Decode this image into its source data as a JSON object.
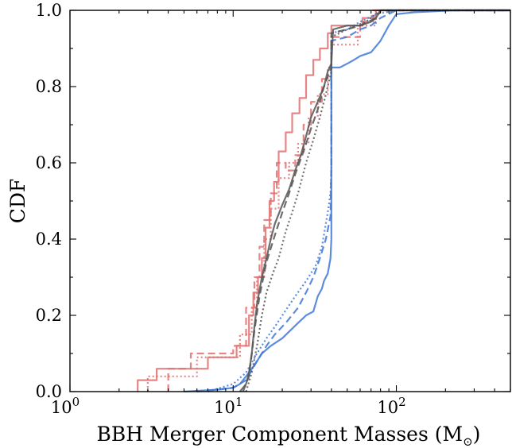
{
  "chart_data": {
    "type": "line",
    "title": "",
    "xlabel": "BBH Merger Component Masses (M",
    "xlabel_sub": "⊙",
    "xlabel_close": ")",
    "ylabel": "CDF",
    "xscale": "log",
    "xlim": [
      1,
      500
    ],
    "ylim": [
      0,
      1
    ],
    "grid": false,
    "x_ticks": [
      {
        "value": 1,
        "base": "10",
        "exp": "0"
      },
      {
        "value": 10,
        "base": "10",
        "exp": "1"
      },
      {
        "value": 100,
        "base": "10",
        "exp": "2"
      }
    ],
    "y_ticks": [
      {
        "value": 0.0,
        "label": "0.0"
      },
      {
        "value": 0.2,
        "label": "0.2"
      },
      {
        "value": 0.4,
        "label": "0.4"
      },
      {
        "value": 0.6,
        "label": "0.6"
      },
      {
        "value": 0.8,
        "label": "0.8"
      },
      {
        "value": 1.0,
        "label": "1.0"
      }
    ],
    "series": [
      {
        "color": "#e07070",
        "dash": "solid",
        "x": [
          2.6,
          2.6,
          3.4,
          3.4,
          7.0,
          7.0,
          10.5,
          10.5,
          12.5,
          12.5,
          13.3,
          13.3,
          14.2,
          14.2,
          15.0,
          15.0,
          15.8,
          15.8,
          16.7,
          16.7,
          17.8,
          17.8,
          19.0,
          19.0,
          21.0,
          21.0,
          23.0,
          23.0,
          25.5,
          25.5,
          28.0,
          28.0,
          31.0,
          31.0,
          34.0,
          34.0,
          38.0,
          38.0,
          40.0,
          40.0,
          62.0,
          62.0,
          75.0,
          75.0,
          500
        ],
        "y": [
          0,
          0.03,
          0.03,
          0.06,
          0.06,
          0.09,
          0.09,
          0.12,
          0.12,
          0.2,
          0.2,
          0.26,
          0.26,
          0.3,
          0.3,
          0.35,
          0.35,
          0.43,
          0.43,
          0.5,
          0.5,
          0.55,
          0.55,
          0.63,
          0.63,
          0.68,
          0.68,
          0.73,
          0.73,
          0.77,
          0.77,
          0.83,
          0.83,
          0.87,
          0.87,
          0.9,
          0.9,
          0.94,
          0.94,
          0.96,
          0.96,
          0.98,
          0.98,
          1.0,
          1.0
        ]
      },
      {
        "color": "#e07070",
        "dash": "dashed",
        "x": [
          4.0,
          4.0,
          5.5,
          5.5,
          10.0,
          10.0,
          12.0,
          12.0,
          13.5,
          13.5,
          14.5,
          14.5,
          15.5,
          15.5,
          17.0,
          17.0,
          18.5,
          18.5,
          21.0,
          21.0,
          24.0,
          24.0,
          27.0,
          27.0,
          30.0,
          30.0,
          35.0,
          35.0,
          40.0,
          40.0,
          60.0,
          60.0,
          72.0,
          72.0,
          500
        ],
        "y": [
          0,
          0.06,
          0.06,
          0.1,
          0.1,
          0.12,
          0.12,
          0.22,
          0.22,
          0.3,
          0.3,
          0.38,
          0.38,
          0.45,
          0.45,
          0.52,
          0.52,
          0.6,
          0.6,
          0.58,
          0.58,
          0.62,
          0.62,
          0.7,
          0.7,
          0.76,
          0.76,
          0.82,
          0.82,
          0.93,
          0.93,
          0.97,
          0.97,
          1.0,
          1.0
        ]
      },
      {
        "color": "#e07070",
        "dash": "dotted",
        "x": [
          3.0,
          3.0,
          6.0,
          6.0,
          11.0,
          11.0,
          13.0,
          13.0,
          14.0,
          14.0,
          15.5,
          15.5,
          17.0,
          17.0,
          19.0,
          19.0,
          22.0,
          22.0,
          25.0,
          25.0,
          29.0,
          29.0,
          33.0,
          33.0,
          38.0,
          38.0,
          40.0,
          40.0,
          58.0,
          58.0,
          75.0,
          75.0,
          500
        ],
        "y": [
          0,
          0.04,
          0.04,
          0.09,
          0.09,
          0.15,
          0.15,
          0.22,
          0.22,
          0.3,
          0.3,
          0.4,
          0.4,
          0.48,
          0.48,
          0.56,
          0.56,
          0.6,
          0.6,
          0.65,
          0.65,
          0.72,
          0.72,
          0.78,
          0.78,
          0.85,
          0.85,
          0.91,
          0.91,
          0.96,
          0.96,
          1.0,
          1.0
        ]
      },
      {
        "color": "#3f78d8",
        "dash": "solid",
        "x": [
          5.0,
          8.0,
          10.0,
          11.0,
          12.0,
          13.0,
          14.0,
          15.0,
          17.0,
          20.0,
          25.0,
          28.0,
          31.0,
          33.0,
          35.0,
          36.0,
          38.0,
          39.5,
          40.0,
          40.0,
          45.0,
          50.0,
          55.0,
          60.0,
          70.0,
          80.0,
          90.0,
          100.0,
          130.0,
          180.0,
          230.0,
          300.0,
          500.0
        ],
        "y": [
          0.0,
          0.005,
          0.01,
          0.02,
          0.04,
          0.06,
          0.08,
          0.1,
          0.12,
          0.14,
          0.18,
          0.2,
          0.21,
          0.25,
          0.27,
          0.29,
          0.31,
          0.35,
          0.4,
          0.85,
          0.85,
          0.86,
          0.87,
          0.88,
          0.89,
          0.92,
          0.96,
          0.99,
          0.995,
          0.998,
          1.0,
          1.0,
          1.0
        ]
      },
      {
        "color": "#3f78d8",
        "dash": "dashed",
        "x": [
          6.0,
          10.0,
          12.0,
          14.0,
          16.0,
          18.0,
          21.0,
          25.0,
          28.0,
          31.0,
          34.0,
          37.0,
          39.5,
          40.0,
          40.0,
          50.0,
          60.0,
          70.0,
          80.0,
          100.0,
          150.0,
          500.0
        ],
        "y": [
          0.0,
          0.01,
          0.03,
          0.08,
          0.12,
          0.15,
          0.18,
          0.22,
          0.26,
          0.3,
          0.35,
          0.4,
          0.46,
          0.6,
          0.92,
          0.93,
          0.95,
          0.96,
          0.98,
          1.0,
          1.0,
          1.0
        ]
      },
      {
        "color": "#3f78d8",
        "dash": "dotted",
        "x": [
          7.0,
          10.0,
          12.0,
          14.0,
          16.0,
          18.0,
          20.0,
          24.0,
          28.0,
          32.0,
          35.0,
          38.0,
          39.5,
          40.0,
          40.0,
          50.0,
          60.0,
          75.0,
          100.0,
          500.0
        ],
        "y": [
          0.0,
          0.02,
          0.05,
          0.1,
          0.14,
          0.17,
          0.2,
          0.25,
          0.29,
          0.33,
          0.38,
          0.47,
          0.52,
          0.58,
          0.94,
          0.95,
          0.97,
          0.99,
          1.0,
          1.0
        ]
      },
      {
        "color": "#555555",
        "dash": "solid",
        "x": [
          11.0,
          12.0,
          12.5,
          13.0,
          13.5,
          14.0,
          15.0,
          16.0,
          17.0,
          18.0,
          20.0,
          22.0,
          24.0,
          26.0,
          28.0,
          30.0,
          33.0,
          36.0,
          38.0,
          40.0,
          41.0,
          50.0,
          60.0,
          70.0,
          75.0,
          80.0,
          500.0
        ],
        "y": [
          0.0,
          0.02,
          0.05,
          0.1,
          0.17,
          0.23,
          0.3,
          0.35,
          0.4,
          0.44,
          0.49,
          0.53,
          0.58,
          0.62,
          0.67,
          0.72,
          0.76,
          0.8,
          0.84,
          0.86,
          0.95,
          0.96,
          0.96,
          0.97,
          0.98,
          1.0,
          1.0
        ]
      },
      {
        "color": "#555555",
        "dash": "dashed",
        "x": [
          11.5,
          12.5,
          13.0,
          13.5,
          14.5,
          16.0,
          18.0,
          20.0,
          22.0,
          24.0,
          27.0,
          30.0,
          33.0,
          36.0,
          40.0,
          40.0,
          50.0,
          60.0,
          75.0,
          80.0,
          500.0
        ],
        "y": [
          0.0,
          0.04,
          0.1,
          0.16,
          0.25,
          0.34,
          0.41,
          0.47,
          0.52,
          0.57,
          0.63,
          0.69,
          0.74,
          0.8,
          0.85,
          0.94,
          0.95,
          0.96,
          0.98,
          1.0,
          1.0
        ]
      },
      {
        "color": "#555555",
        "dash": "dotted",
        "x": [
          12.0,
          13.0,
          14.0,
          15.0,
          16.0,
          17.5,
          19.0,
          21.0,
          23.0,
          25.0,
          28.0,
          31.0,
          34.0,
          37.0,
          40.0,
          40.0,
          50.0,
          65.0,
          75.0,
          80.0,
          500.0
        ],
        "y": [
          0.0,
          0.05,
          0.12,
          0.2,
          0.26,
          0.31,
          0.35,
          0.42,
          0.47,
          0.52,
          0.6,
          0.66,
          0.72,
          0.78,
          0.84,
          0.93,
          0.95,
          0.97,
          0.99,
          1.0,
          1.0
        ]
      }
    ]
  }
}
